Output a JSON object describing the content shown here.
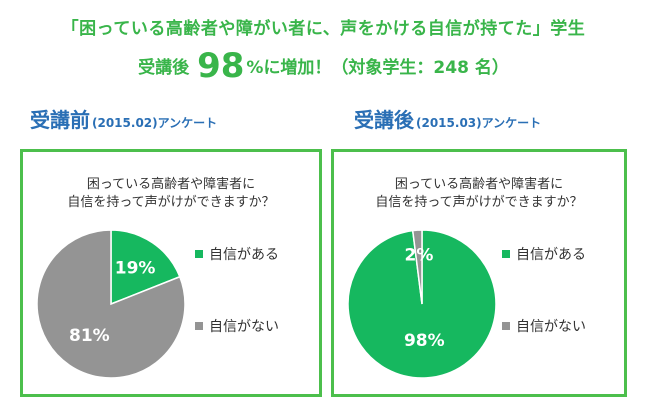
{
  "header": {
    "line1": "「困っている高齢者や障がい者に、声をかける自信が持てた」学生",
    "line2_prefix": "受講後",
    "line2_value": "98",
    "line2_unit": "%",
    "line2_suffix": "に増加！（対象学生：248 名）"
  },
  "colors": {
    "confident": "#16b85f",
    "not_confident": "#949494",
    "frame": "#4cbf4c",
    "headline": "#39b54a",
    "section": "#2a6fb5"
  },
  "chart_data": [
    {
      "type": "pie",
      "title": "受講前",
      "subtitle": "(2015.02)アンケート",
      "question": [
        "困っている高齢者や障害者に",
        "自信を持って声がけができますか？"
      ],
      "slices": [
        {
          "name": "自信がある",
          "value": 19,
          "label": "19%"
        },
        {
          "name": "自信がない",
          "value": 81,
          "label": "81%"
        }
      ],
      "legend_position": "right"
    },
    {
      "type": "pie",
      "title": "受講後",
      "subtitle": "(2015.03)アンケート",
      "question": [
        "困っている高齢者や障害者に",
        "自信を持って声がけができますか？"
      ],
      "slices": [
        {
          "name": "自信がある",
          "value": 98,
          "label": "98%"
        },
        {
          "name": "自信がない",
          "value": 2,
          "label": "2%"
        }
      ],
      "legend_position": "right"
    }
  ]
}
